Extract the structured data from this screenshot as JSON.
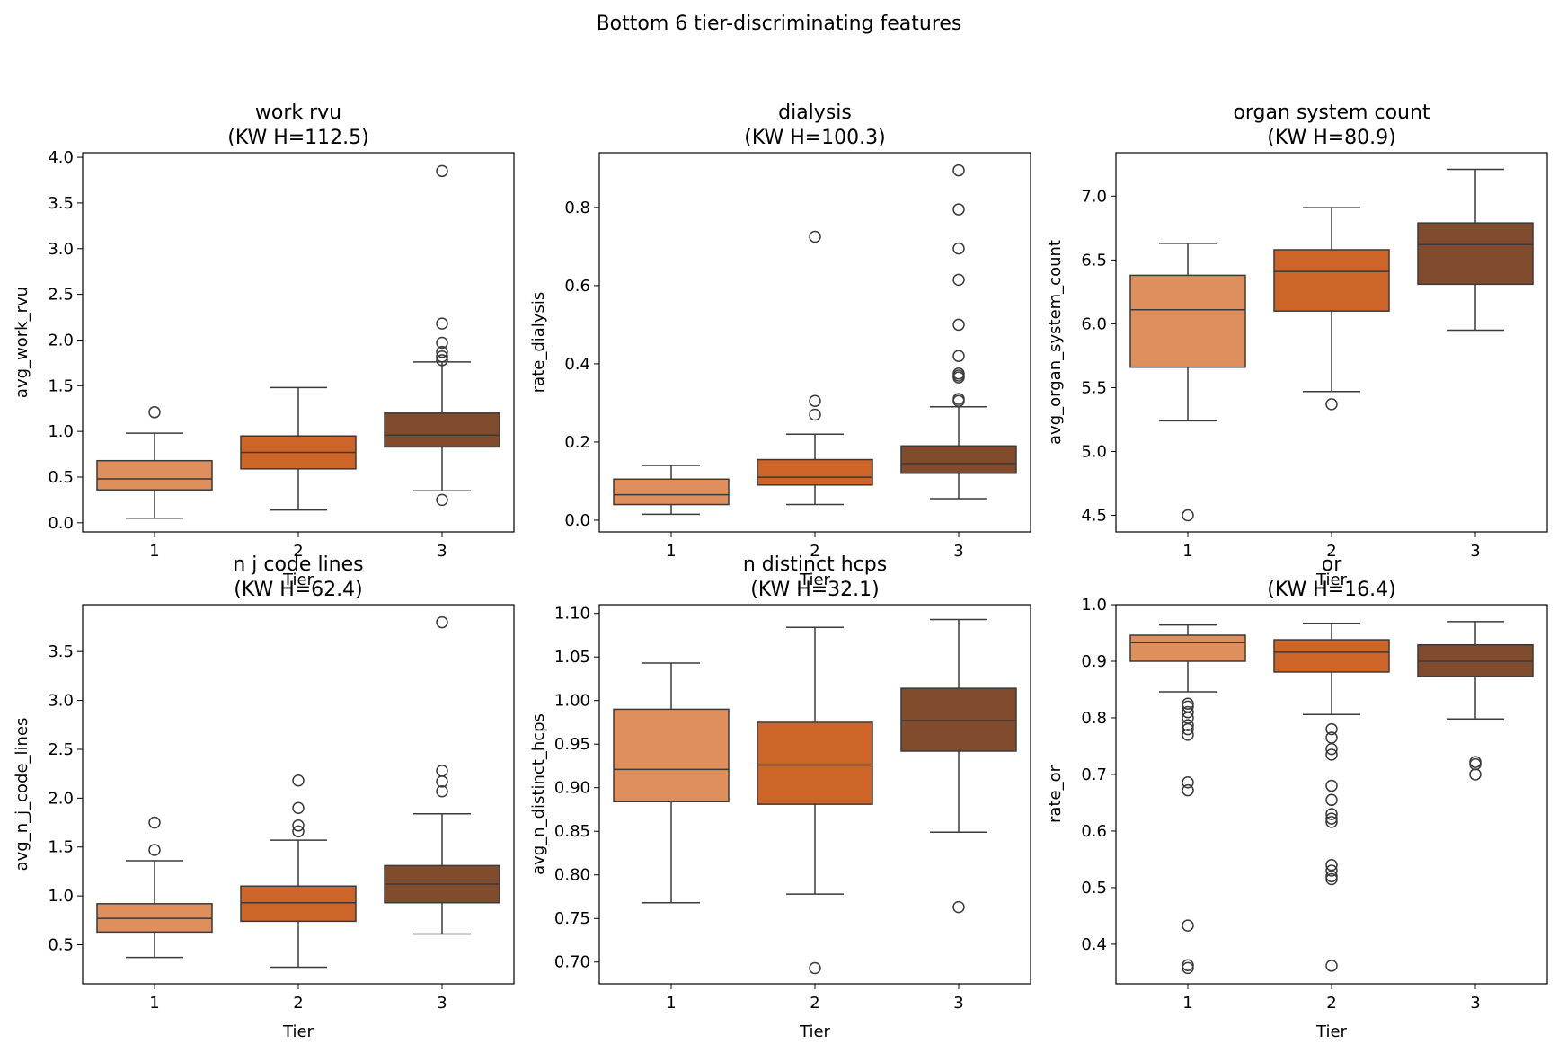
{
  "figure": {
    "title": "Bottom 6 tier-discriminating features"
  },
  "colors": {
    "tier_1": "#df8f5b",
    "tier_2": "#cd6428",
    "tier_3": "#814b2d",
    "edge": "#3a3a3a"
  },
  "chart_data": [
    {
      "type": "box",
      "title_line1": "work rvu",
      "title_line2": "(KW H=112.5)",
      "xlabel": "Tier",
      "ylabel": "avg_work_rvu",
      "categories": [
        "1",
        "2",
        "3"
      ],
      "ylim": [
        -0.1,
        4.05
      ],
      "yticks": [
        0.0,
        0.5,
        1.0,
        1.5,
        2.0,
        2.5,
        3.0,
        3.5,
        4.0
      ],
      "tick_decimals": 1,
      "boxes": [
        {
          "q1": 0.36,
          "median": 0.48,
          "q3": 0.68,
          "whisker_low": 0.05,
          "whisker_high": 0.98,
          "outliers": [
            1.21
          ]
        },
        {
          "q1": 0.59,
          "median": 0.77,
          "q3": 0.95,
          "whisker_low": 0.14,
          "whisker_high": 1.48,
          "outliers": []
        },
        {
          "q1": 0.83,
          "median": 0.96,
          "q3": 1.2,
          "whisker_low": 0.35,
          "whisker_high": 1.76,
          "outliers": [
            0.25,
            1.78,
            1.82,
            1.87,
            1.97,
            2.18,
            3.85
          ]
        }
      ]
    },
    {
      "type": "box",
      "title_line1": "dialysis",
      "title_line2": "(KW H=100.3)",
      "xlabel": "Tier",
      "ylabel": "rate_dialysis",
      "categories": [
        "1",
        "2",
        "3"
      ],
      "ylim": [
        -0.03,
        0.94
      ],
      "yticks": [
        0.0,
        0.2,
        0.4,
        0.6,
        0.8
      ],
      "tick_decimals": 1,
      "boxes": [
        {
          "q1": 0.04,
          "median": 0.065,
          "q3": 0.105,
          "whisker_low": 0.015,
          "whisker_high": 0.14,
          "outliers": []
        },
        {
          "q1": 0.09,
          "median": 0.11,
          "q3": 0.155,
          "whisker_low": 0.04,
          "whisker_high": 0.22,
          "outliers": [
            0.27,
            0.305,
            0.725
          ]
        },
        {
          "q1": 0.12,
          "median": 0.145,
          "q3": 0.19,
          "whisker_low": 0.055,
          "whisker_high": 0.29,
          "outliers": [
            0.305,
            0.31,
            0.365,
            0.37,
            0.375,
            0.42,
            0.5,
            0.615,
            0.695,
            0.795,
            0.895
          ]
        }
      ]
    },
    {
      "type": "box",
      "title_line1": "organ system count",
      "title_line2": "(KW H=80.9)",
      "xlabel": "Tier",
      "ylabel": "avg_organ_system_count",
      "categories": [
        "1",
        "2",
        "3"
      ],
      "ylim": [
        4.37,
        7.34
      ],
      "yticks": [
        4.5,
        5.0,
        5.5,
        6.0,
        6.5,
        7.0
      ],
      "tick_decimals": 1,
      "boxes": [
        {
          "q1": 5.66,
          "median": 6.11,
          "q3": 6.38,
          "whisker_low": 5.24,
          "whisker_high": 6.63,
          "outliers": [
            4.5
          ]
        },
        {
          "q1": 6.1,
          "median": 6.41,
          "q3": 6.58,
          "whisker_low": 5.47,
          "whisker_high": 6.91,
          "outliers": [
            5.37
          ]
        },
        {
          "q1": 6.31,
          "median": 6.62,
          "q3": 6.79,
          "whisker_low": 5.95,
          "whisker_high": 7.21,
          "outliers": []
        }
      ]
    },
    {
      "type": "box",
      "title_line1": "n j code lines",
      "title_line2": "(KW H=62.4)",
      "xlabel": "Tier",
      "ylabel": "avg_n_j_code_lines",
      "categories": [
        "1",
        "2",
        "3"
      ],
      "ylim": [
        0.1,
        3.98
      ],
      "yticks": [
        0.5,
        1.0,
        1.5,
        2.0,
        2.5,
        3.0,
        3.5
      ],
      "tick_decimals": 1,
      "boxes": [
        {
          "q1": 0.63,
          "median": 0.77,
          "q3": 0.92,
          "whisker_low": 0.37,
          "whisker_high": 1.36,
          "outliers": [
            1.47,
            1.75
          ]
        },
        {
          "q1": 0.74,
          "median": 0.93,
          "q3": 1.1,
          "whisker_low": 0.27,
          "whisker_high": 1.57,
          "outliers": [
            1.66,
            1.72,
            1.9,
            2.18
          ]
        },
        {
          "q1": 0.93,
          "median": 1.12,
          "q3": 1.31,
          "whisker_low": 0.61,
          "whisker_high": 1.84,
          "outliers": [
            2.07,
            2.17,
            2.28,
            3.8
          ]
        }
      ]
    },
    {
      "type": "box",
      "title_line1": "n distinct hcps",
      "title_line2": "(KW H=32.1)",
      "xlabel": "Tier",
      "ylabel": "avg_n_distinct_hcps",
      "categories": [
        "1",
        "2",
        "3"
      ],
      "ylim": [
        0.675,
        1.11
      ],
      "yticks": [
        0.7,
        0.75,
        0.8,
        0.85,
        0.9,
        0.95,
        1.0,
        1.05,
        1.1
      ],
      "tick_decimals": 2,
      "boxes": [
        {
          "q1": 0.884,
          "median": 0.921,
          "q3": 0.99,
          "whisker_low": 0.768,
          "whisker_high": 1.043,
          "outliers": []
        },
        {
          "q1": 0.881,
          "median": 0.926,
          "q3": 0.975,
          "whisker_low": 0.778,
          "whisker_high": 1.084,
          "outliers": [
            0.693
          ]
        },
        {
          "q1": 0.942,
          "median": 0.977,
          "q3": 1.014,
          "whisker_low": 0.849,
          "whisker_high": 1.093,
          "outliers": [
            0.763
          ]
        }
      ]
    },
    {
      "type": "box",
      "title_line1": "or",
      "title_line2": "(KW H=16.4)",
      "xlabel": "Tier",
      "ylabel": "rate_or",
      "categories": [
        "1",
        "2",
        "3"
      ],
      "ylim": [
        0.33,
        1.0
      ],
      "yticks": [
        0.4,
        0.5,
        0.6,
        0.7,
        0.8,
        0.9,
        1.0
      ],
      "tick_decimals": 1,
      "boxes": [
        {
          "q1": 0.9,
          "median": 0.933,
          "q3": 0.946,
          "whisker_low": 0.846,
          "whisker_high": 0.964,
          "outliers": [
            0.358,
            0.363,
            0.433,
            0.672,
            0.686,
            0.77,
            0.78,
            0.787,
            0.8,
            0.81,
            0.82,
            0.825
          ]
        },
        {
          "q1": 0.881,
          "median": 0.916,
          "q3": 0.938,
          "whisker_low": 0.806,
          "whisker_high": 0.967,
          "outliers": [
            0.362,
            0.515,
            0.52,
            0.53,
            0.54,
            0.616,
            0.622,
            0.63,
            0.655,
            0.68,
            0.735,
            0.745,
            0.765,
            0.78
          ]
        },
        {
          "q1": 0.873,
          "median": 0.9,
          "q3": 0.929,
          "whisker_low": 0.798,
          "whisker_high": 0.97,
          "outliers": [
            0.7,
            0.718,
            0.722
          ]
        }
      ]
    }
  ]
}
